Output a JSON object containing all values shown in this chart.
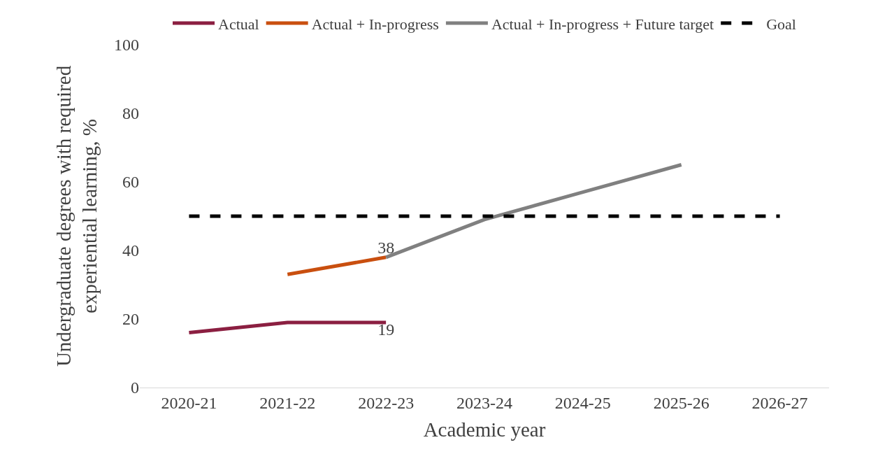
{
  "chart_data": {
    "type": "line",
    "xlabel": "Academic year",
    "ylabel": "Undergraduate degrees with required\nexperiential learning, %",
    "categories": [
      "2020-21",
      "2021-22",
      "2022-23",
      "2023-24",
      "2024-25",
      "2025-26",
      "2026-27"
    ],
    "series": [
      {
        "name": "Actual",
        "color": "#8b1f41",
        "values": [
          16,
          19,
          19,
          null,
          null,
          null,
          null
        ],
        "value_labels": [
          null,
          null,
          "19",
          null,
          null,
          null,
          null
        ]
      },
      {
        "name": "Actual + In-progress",
        "color": "#c94f0f",
        "values": [
          null,
          33,
          38,
          null,
          null,
          null,
          null
        ],
        "value_labels": [
          null,
          null,
          "38",
          null,
          null,
          null,
          null
        ]
      },
      {
        "name": "Actual + In-progress + Future target",
        "color": "#808080",
        "values": [
          null,
          null,
          38,
          49,
          57,
          65,
          null
        ]
      },
      {
        "name": "Goal",
        "color": "#000000",
        "values": [
          50,
          50,
          50,
          50,
          50,
          50,
          50
        ],
        "line_style": "dashed"
      }
    ],
    "ylim": [
      0,
      100
    ],
    "yticks": [
      0,
      20,
      40,
      60,
      80,
      100
    ],
    "legend": "top",
    "marker": "none"
  }
}
